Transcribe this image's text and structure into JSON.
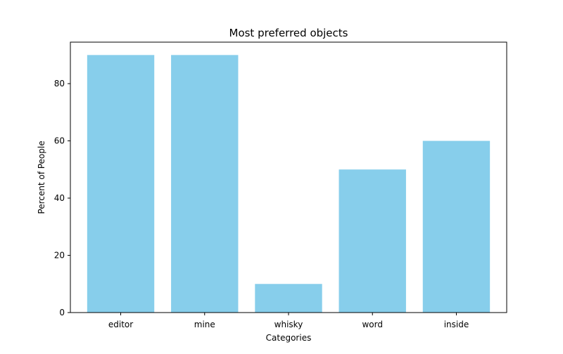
{
  "chart_data": {
    "type": "bar",
    "title": "Most preferred objects",
    "xlabel": "Categories",
    "ylabel": "Percent of People",
    "categories": [
      "editor",
      "mine",
      "whisky",
      "word",
      "inside"
    ],
    "values": [
      90,
      90,
      10,
      50,
      60
    ],
    "ylim": [
      0,
      94.5
    ],
    "yticks": [
      0,
      20,
      40,
      60,
      80
    ],
    "bar_color": "#87CEEB",
    "grid": false,
    "legend": "none"
  }
}
